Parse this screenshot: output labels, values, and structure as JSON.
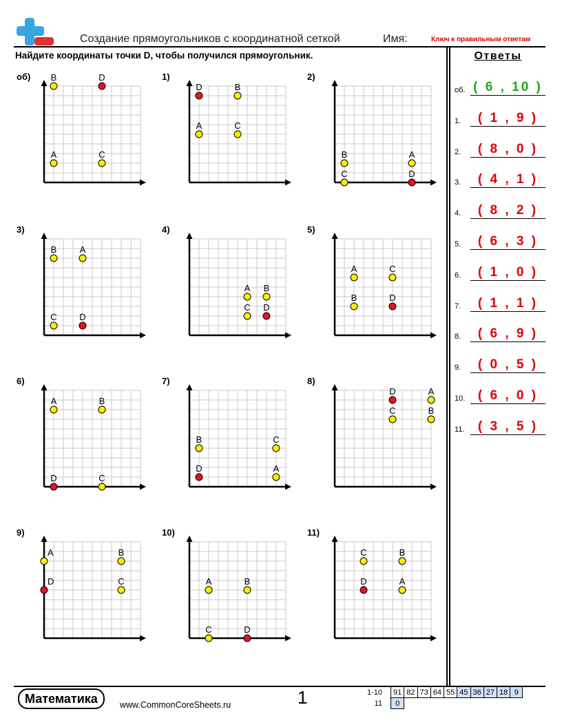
{
  "header": {
    "title": "Создание прямоугольников с координатной сеткой",
    "name_label": "Имя:",
    "key_label": "Ключ к правильным ответам"
  },
  "instruction": "Найдите координаты точки D, чтобы получился прямоугольник.",
  "colors": {
    "yellow_point": "#ffee00",
    "red_point": "#e8141a",
    "answer_green": "#18a818",
    "answer_red": "#e00000"
  },
  "answers": {
    "title": "Ответы",
    "items": [
      {
        "num": "об.",
        "value": "( 6 , 10 )",
        "color": "#18a818"
      },
      {
        "num": "1.",
        "value": "( 1 , 9 )",
        "color": "#e00000"
      },
      {
        "num": "2.",
        "value": "( 8 , 0 )",
        "color": "#e00000"
      },
      {
        "num": "3.",
        "value": "( 4 , 1 )",
        "color": "#e00000"
      },
      {
        "num": "4.",
        "value": "( 8 , 2 )",
        "color": "#e00000"
      },
      {
        "num": "5.",
        "value": "( 6 , 3 )",
        "color": "#e00000"
      },
      {
        "num": "6.",
        "value": "( 1 , 0 )",
        "color": "#e00000"
      },
      {
        "num": "7.",
        "value": "( 1 , 1 )",
        "color": "#e00000"
      },
      {
        "num": "8.",
        "value": "( 6 , 9 )",
        "color": "#e00000"
      },
      {
        "num": "9.",
        "value": "( 0 , 5 )",
        "color": "#e00000"
      },
      {
        "num": "10.",
        "value": "( 6 , 0 )",
        "color": "#e00000"
      },
      {
        "num": "11.",
        "value": "( 3 , 5 )",
        "color": "#e00000"
      }
    ]
  },
  "problems": [
    {
      "label": "об)",
      "points": [
        {
          "n": "B",
          "x": 1,
          "y": 10
        },
        {
          "n": "D",
          "x": 6,
          "y": 10,
          "red": true
        },
        {
          "n": "A",
          "x": 1,
          "y": 2
        },
        {
          "n": "C",
          "x": 6,
          "y": 2
        }
      ]
    },
    {
      "label": "1)",
      "points": [
        {
          "n": "D",
          "x": 1,
          "y": 9,
          "red": true
        },
        {
          "n": "B",
          "x": 5,
          "y": 9
        },
        {
          "n": "A",
          "x": 1,
          "y": 5
        },
        {
          "n": "C",
          "x": 5,
          "y": 5
        }
      ]
    },
    {
      "label": "2)",
      "points": [
        {
          "n": "B",
          "x": 1,
          "y": 2
        },
        {
          "n": "A",
          "x": 8,
          "y": 2
        },
        {
          "n": "C",
          "x": 1,
          "y": 0
        },
        {
          "n": "D",
          "x": 8,
          "y": 0,
          "red": true
        }
      ]
    },
    {
      "label": "3)",
      "points": [
        {
          "n": "B",
          "x": 1,
          "y": 8
        },
        {
          "n": "A",
          "x": 4,
          "y": 8
        },
        {
          "n": "C",
          "x": 1,
          "y": 1
        },
        {
          "n": "D",
          "x": 4,
          "y": 1,
          "red": true
        }
      ]
    },
    {
      "label": "4)",
      "points": [
        {
          "n": "A",
          "x": 6,
          "y": 4
        },
        {
          "n": "B",
          "x": 8,
          "y": 4
        },
        {
          "n": "C",
          "x": 6,
          "y": 2
        },
        {
          "n": "D",
          "x": 8,
          "y": 2,
          "red": true
        }
      ]
    },
    {
      "label": "5)",
      "points": [
        {
          "n": "A",
          "x": 2,
          "y": 6
        },
        {
          "n": "C",
          "x": 6,
          "y": 6
        },
        {
          "n": "B",
          "x": 2,
          "y": 3
        },
        {
          "n": "D",
          "x": 6,
          "y": 3,
          "red": true
        }
      ]
    },
    {
      "label": "6)",
      "points": [
        {
          "n": "A",
          "x": 1,
          "y": 8
        },
        {
          "n": "B",
          "x": 6,
          "y": 8
        },
        {
          "n": "D",
          "x": 1,
          "y": 0,
          "red": true
        },
        {
          "n": "C",
          "x": 6,
          "y": 0
        }
      ]
    },
    {
      "label": "7)",
      "points": [
        {
          "n": "B",
          "x": 1,
          "y": 4
        },
        {
          "n": "C",
          "x": 9,
          "y": 4
        },
        {
          "n": "D",
          "x": 1,
          "y": 1,
          "red": true
        },
        {
          "n": "A",
          "x": 9,
          "y": 1
        }
      ]
    },
    {
      "label": "8)",
      "points": [
        {
          "n": "D",
          "x": 6,
          "y": 9,
          "red": true
        },
        {
          "n": "A",
          "x": 10,
          "y": 9
        },
        {
          "n": "C",
          "x": 6,
          "y": 7
        },
        {
          "n": "B",
          "x": 10,
          "y": 7
        }
      ]
    },
    {
      "label": "9)",
      "points": [
        {
          "n": "A",
          "x": 0,
          "y": 8
        },
        {
          "n": "B",
          "x": 8,
          "y": 8
        },
        {
          "n": "D",
          "x": 0,
          "y": 5,
          "red": true
        },
        {
          "n": "C",
          "x": 8,
          "y": 5
        }
      ]
    },
    {
      "label": "10)",
      "points": [
        {
          "n": "A",
          "x": 2,
          "y": 5
        },
        {
          "n": "B",
          "x": 6,
          "y": 5
        },
        {
          "n": "C",
          "x": 2,
          "y": 0
        },
        {
          "n": "D",
          "x": 6,
          "y": 0,
          "red": true
        }
      ]
    },
    {
      "label": "11)",
      "points": [
        {
          "n": "C",
          "x": 3,
          "y": 8
        },
        {
          "n": "B",
          "x": 7,
          "y": 8
        },
        {
          "n": "D",
          "x": 3,
          "y": 5,
          "red": true
        },
        {
          "n": "A",
          "x": 7,
          "y": 5
        }
      ]
    }
  ],
  "footer": {
    "brand": "Математика",
    "site": "www.CommonCoreSheets.ru",
    "page": "1",
    "score_rows": [
      {
        "label": "1-10",
        "cells": [
          "91",
          "82",
          "73",
          "64",
          "55",
          "45",
          "36",
          "27",
          "18",
          "9"
        ]
      },
      {
        "label": "11",
        "cells": [
          "0"
        ]
      }
    ]
  }
}
